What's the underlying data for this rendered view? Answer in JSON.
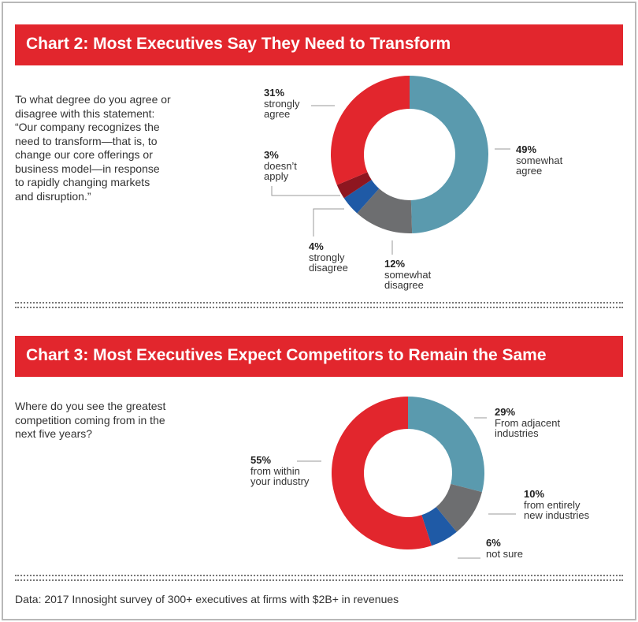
{
  "chart_data": [
    {
      "type": "pie",
      "variant": "donut",
      "title": "Chart 2: Most Executives Say They Need to Transform",
      "question": [
        "To what degree do you agree or",
        "disagree with this statement:",
        "“Our company recognizes the",
        "need to transform—that is, to",
        "change our core offerings or",
        "business model—in response",
        "to rapidly changing markets",
        "and disruption.”"
      ],
      "slices": [
        {
          "pct_label": "49%",
          "value": 49,
          "label_lines": [
            "somewhat",
            "agree"
          ],
          "color": "#5a9aae"
        },
        {
          "pct_label": "12%",
          "value": 12,
          "label_lines": [
            "somewhat",
            "disagree"
          ],
          "color": "#6d6e70"
        },
        {
          "pct_label": "4%",
          "value": 4,
          "label_lines": [
            "strongly",
            "disagree"
          ],
          "color": "#1f5aa6"
        },
        {
          "pct_label": "3%",
          "value": 3,
          "label_lines": [
            "doesn’t",
            "apply"
          ],
          "color": "#8e1620"
        },
        {
          "pct_label": "31%",
          "value": 31,
          "label_lines": [
            "strongly",
            "agree"
          ],
          "color": "#e2262d"
        }
      ]
    },
    {
      "type": "pie",
      "variant": "donut",
      "title": "Chart 3: Most Executives Expect Competitors to Remain the Same",
      "question": [
        "Where do you see the greatest",
        "competition coming from in the",
        "next five years?"
      ],
      "slices": [
        {
          "pct_label": "29%",
          "value": 29,
          "label_lines": [
            "From adjacent",
            "industries"
          ],
          "color": "#5a9aae"
        },
        {
          "pct_label": "10%",
          "value": 10,
          "label_lines": [
            "from entirely",
            "new industries"
          ],
          "color": "#6d6e70"
        },
        {
          "pct_label": "6%",
          "value": 6,
          "label_lines": [
            "not sure"
          ],
          "color": "#1f5aa6"
        },
        {
          "pct_label": "55%",
          "value": 55,
          "label_lines": [
            "from within",
            "your industry"
          ],
          "color": "#e2262d"
        }
      ]
    }
  ],
  "footnote": "Data: 2017 Innosight survey of 300+ executives at firms with $2B+ in revenues"
}
